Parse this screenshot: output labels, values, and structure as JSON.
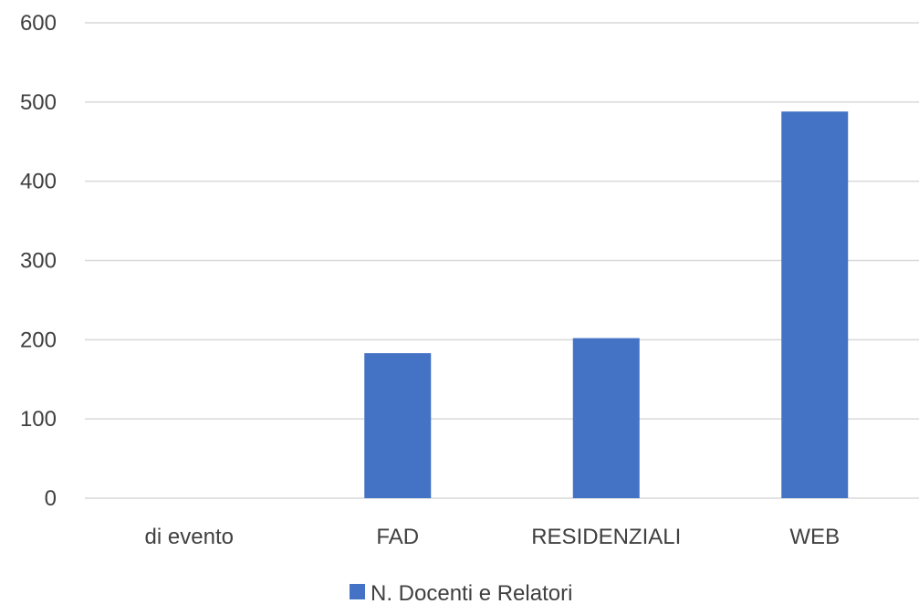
{
  "chart_data": {
    "type": "bar",
    "categories": [
      "di evento",
      "FAD",
      "RESIDENZIALI",
      "WEB"
    ],
    "series": [
      {
        "name": "N. Docenti e Relatori",
        "values": [
          0,
          183,
          202,
          488
        ]
      }
    ],
    "ylim": [
      0,
      600
    ],
    "yticks": [
      0,
      100,
      200,
      300,
      400,
      500,
      600
    ],
    "grid": true,
    "legend": "bottom",
    "colors": {
      "bar": "#4472C4",
      "grid": "#d9d9d9",
      "text": "#404040"
    }
  }
}
